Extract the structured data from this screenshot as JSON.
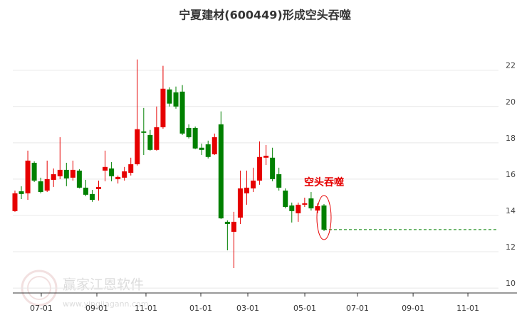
{
  "chart_data": {
    "type": "candlestick",
    "title": "宁夏建材(600449)形成空头吞噬",
    "up_color": "#e60000",
    "down_color": "#008000",
    "grid": true,
    "y_axis_side": "right",
    "ylim": [
      9.73,
      24.3
    ],
    "yticks": [
      10,
      12,
      14,
      16,
      18,
      20,
      22
    ],
    "xlim": [
      -0.33,
      75.1
    ],
    "xticks": [
      {
        "value": 4.09,
        "label": "07-01"
      },
      {
        "value": 12.72,
        "label": "09-01"
      },
      {
        "value": 20.35,
        "label": "11-01"
      },
      {
        "value": 28.87,
        "label": "01-01"
      },
      {
        "value": 36.17,
        "label": "03-01"
      },
      {
        "value": 45.02,
        "label": "05-01"
      },
      {
        "value": 53.2,
        "label": "07-01"
      },
      {
        "value": 61.84,
        "label": "09-01"
      },
      {
        "value": 70.35,
        "label": "11-01"
      }
    ],
    "categories": [
      null,
      null,
      null,
      null,
      null,
      null,
      null,
      null,
      null,
      null,
      null,
      null,
      null,
      null,
      null,
      null,
      null,
      null,
      null,
      null,
      null,
      null,
      null,
      null,
      null,
      null,
      null,
      null,
      null,
      null,
      null,
      null,
      null,
      null,
      null,
      null,
      null,
      null,
      null,
      null,
      null,
      null,
      null,
      null,
      null,
      null,
      null,
      null,
      null
    ],
    "open": [
      14.24,
      15.33,
      15.22,
      16.9,
      15.88,
      15.37,
      15.96,
      16.16,
      16.51,
      16.08,
      16.47,
      15.53,
      15.18,
      15.45,
      16.47,
      16.59,
      16.0,
      16.08,
      16.35,
      16.82,
      18.63,
      18.43,
      17.61,
      18.86,
      20.94,
      20.78,
      20.82,
      18.82,
      18.82,
      17.73,
      17.92,
      17.37,
      19.02,
      13.65,
      13.1,
      13.88,
      15.22,
      15.49,
      15.92,
      17.18,
      17.18,
      16.27,
      15.37,
      14.55,
      14.12,
      14.59,
      14.94,
      14.27,
      14.55
    ],
    "high": [
      15.37,
      15.61,
      17.57,
      16.98,
      16.08,
      17.02,
      16.59,
      18.31,
      16.9,
      17.02,
      16.55,
      15.96,
      15.41,
      15.92,
      17.57,
      16.94,
      16.2,
      16.67,
      17.18,
      22.59,
      19.92,
      18.71,
      20.0,
      22.24,
      21.06,
      21.1,
      21.18,
      19.02,
      18.9,
      17.96,
      18.12,
      18.51,
      19.73,
      13.73,
      14.2,
      16.47,
      16.47,
      16.63,
      18.08,
      17.88,
      17.73,
      16.63,
      15.49,
      14.71,
      14.71,
      14.98,
      15.29,
      14.67,
      14.63
    ],
    "low": [
      14.2,
      14.9,
      14.86,
      15.84,
      15.22,
      15.29,
      15.57,
      16.0,
      15.61,
      15.92,
      15.49,
      15.06,
      14.75,
      14.82,
      15.88,
      15.88,
      15.76,
      15.92,
      16.2,
      16.75,
      17.33,
      17.57,
      17.57,
      18.78,
      20.0,
      19.88,
      18.43,
      18.24,
      17.65,
      17.33,
      17.14,
      17.33,
      13.8,
      12.08,
      11.1,
      13.53,
      14.59,
      15.29,
      15.69,
      16.78,
      15.88,
      15.37,
      14.39,
      13.61,
      13.65,
      14.47,
      14.27,
      14.12,
      13.14
    ],
    "close": [
      15.22,
      15.18,
      17.02,
      15.92,
      15.29,
      16.0,
      16.27,
      16.51,
      16.04,
      16.51,
      15.53,
      15.14,
      14.86,
      15.57,
      16.67,
      16.16,
      16.12,
      16.43,
      16.82,
      18.75,
      18.55,
      17.61,
      18.86,
      20.98,
      20.16,
      20.0,
      18.51,
      18.31,
      17.69,
      17.61,
      17.22,
      18.31,
      13.84,
      13.53,
      13.65,
      15.49,
      15.53,
      15.92,
      17.22,
      17.29,
      16.0,
      15.53,
      14.47,
      14.24,
      14.59,
      14.67,
      14.39,
      14.51,
      13.22
    ],
    "annotation": {
      "text": "空头吞噬",
      "color": "#e60000"
    },
    "watermark": {
      "name": "赢家江恩软件",
      "url": "www.yingjiagann.com"
    }
  }
}
